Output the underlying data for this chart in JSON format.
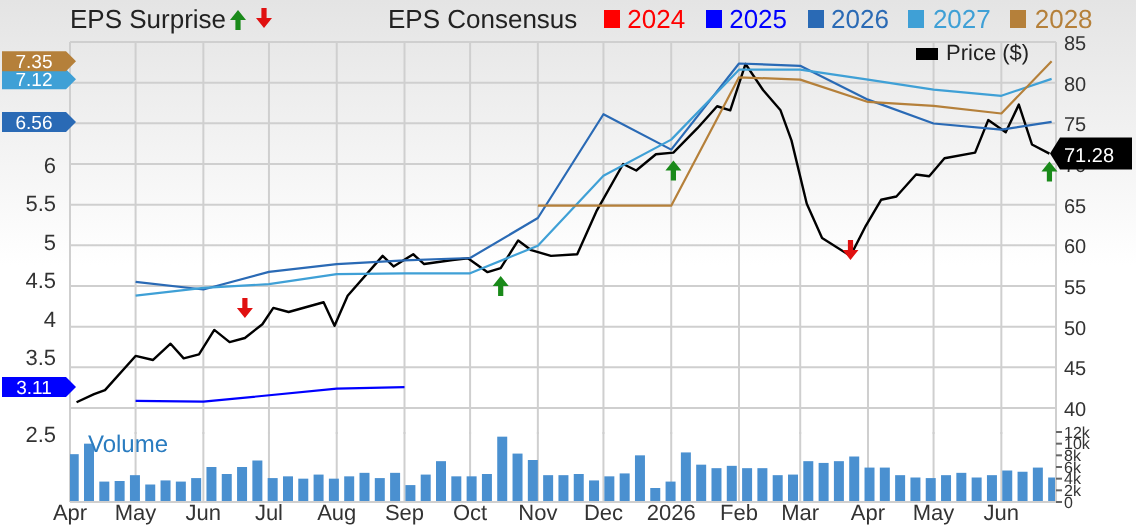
{
  "chart_data": [
    {
      "type": "line",
      "legend_title": "EPS Consensus",
      "legend": "top",
      "grid": true,
      "tick_labels": "y",
      "annotations": [
        "EPS Surprise"
      ],
      "xlim": [
        "2025-04-01",
        "2026-06-26"
      ],
      "ylim": [
        2.5,
        7.6
      ],
      "yticks": [
        2.5,
        3.11,
        3.5,
        4,
        4.5,
        5,
        5.5,
        6,
        6.56,
        7.12,
        7.35
      ],
      "y2lim": [
        36.8,
        85
      ],
      "y2ticks": [
        40,
        45,
        50,
        55,
        60,
        65,
        70,
        71.28,
        75,
        80,
        85
      ],
      "series": [
        {
          "name": "Price ($)",
          "axis": "y2",
          "color": "#000000",
          "x": [
            "2025-04-04",
            "2025-04-12",
            "2025-04-17",
            "2025-05-01",
            "2025-05-09",
            "2025-05-17",
            "2025-05-23",
            "2025-05-30",
            "2025-06-06",
            "2025-06-13",
            "2025-06-20",
            "2025-06-28",
            "2025-07-03",
            "2025-07-10",
            "2025-07-26",
            "2025-07-31",
            "2025-08-06",
            "2025-08-22",
            "2025-08-27",
            "2025-09-05",
            "2025-09-10",
            "2025-09-23",
            "2025-09-30",
            "2025-10-09",
            "2025-10-15",
            "2025-10-23",
            "2025-10-29",
            "2025-11-07",
            "2025-11-19",
            "2025-11-28",
            "2025-12-10",
            "2025-12-16",
            "2025-12-25",
            "2026-01-02",
            "2026-01-13",
            "2026-01-22",
            "2026-01-28",
            "2026-02-04",
            "2026-02-12",
            "2026-02-20",
            "2026-02-25",
            "2026-03-04",
            "2026-03-11",
            "2026-03-24",
            "2026-03-31",
            "2026-04-07",
            "2026-04-14",
            "2026-04-23",
            "2026-04-29",
            "2026-05-06",
            "2026-05-20",
            "2026-05-26",
            "2026-06-03",
            "2026-06-09",
            "2026-06-15",
            "2026-06-23"
          ],
          "values": [
            40.7,
            41.7,
            42.2,
            46.4,
            45.9,
            47.9,
            46.1,
            46.6,
            49.6,
            48.1,
            48.6,
            50.3,
            52.3,
            51.8,
            53.0,
            50.1,
            53.8,
            58.7,
            57.4,
            58.9,
            57.7,
            58.2,
            58.4,
            56.7,
            57.2,
            60.6,
            59.4,
            58.7,
            58.9,
            64.3,
            70.0,
            69.2,
            71.2,
            71.4,
            74.4,
            77.1,
            76.6,
            82.3,
            79.1,
            76.6,
            72.9,
            65.1,
            60.9,
            58.7,
            62.4,
            65.6,
            66.0,
            68.7,
            68.5,
            70.7,
            71.4,
            75.4,
            73.9,
            77.3,
            72.4,
            71.28
          ]
        },
        {
          "name": "2024",
          "color": "#ff0000"
        },
        {
          "name": "2025",
          "color": "#0000ff",
          "x": [
            "2025-05-01",
            "2025-06-01",
            "2025-08-01",
            "2025-09-01"
          ],
          "values": [
            2.93,
            2.92,
            3.09,
            3.11
          ]
        },
        {
          "name": "2026",
          "color": "#2a6ab5",
          "x": [
            "2025-05-01",
            "2025-06-01",
            "2025-07-01",
            "2025-08-01",
            "2025-09-01",
            "2025-10-01",
            "2025-11-01",
            "2025-12-01",
            "2026-01-01",
            "2026-02-01",
            "2026-03-01",
            "2026-04-01",
            "2026-05-01",
            "2026-06-01",
            "2026-06-24"
          ],
          "values": [
            4.48,
            4.38,
            4.61,
            4.71,
            4.76,
            4.79,
            5.31,
            6.66,
            6.2,
            7.32,
            7.29,
            6.85,
            6.54,
            6.46,
            6.56
          ]
        },
        {
          "name": "2027",
          "color": "#3fa0d6",
          "x": [
            "2025-05-01",
            "2025-06-01",
            "2025-07-01",
            "2025-08-01",
            "2025-09-01",
            "2025-10-01",
            "2025-11-01",
            "2025-12-01",
            "2026-01-01",
            "2026-02-01",
            "2026-03-01",
            "2026-04-01",
            "2026-05-01",
            "2026-06-01",
            "2026-06-24"
          ],
          "values": [
            4.3,
            4.4,
            4.45,
            4.58,
            4.59,
            4.59,
            4.95,
            5.86,
            6.33,
            7.24,
            7.24,
            7.11,
            6.98,
            6.9,
            7.12
          ]
        },
        {
          "name": "2028",
          "color": "#b5803a",
          "x": [
            "2025-11-01",
            "2025-12-01",
            "2026-01-01",
            "2026-02-01",
            "2026-03-01",
            "2026-04-01",
            "2026-05-01",
            "2026-06-01",
            "2026-06-24"
          ],
          "values": [
            5.47,
            5.47,
            5.47,
            7.14,
            7.11,
            6.82,
            6.77,
            6.67,
            7.35
          ]
        }
      ]
    },
    {
      "type": "bar",
      "ylabel": "Volume",
      "grid": "x",
      "xlim": [
        "2025-04-01",
        "2026-06-26"
      ],
      "xticks": [
        {
          "value": "2025-04-01",
          "label": "Apr"
        },
        {
          "value": "2025-05-01",
          "label": "May"
        },
        {
          "value": "2025-06-01",
          "label": "Jun"
        },
        {
          "value": "2025-07-01",
          "label": "Jul"
        },
        {
          "value": "2025-08-01",
          "label": "Aug"
        },
        {
          "value": "2025-09-01",
          "label": "Sep"
        },
        {
          "value": "2025-10-01",
          "label": "Oct"
        },
        {
          "value": "2025-11-01",
          "label": "Nov"
        },
        {
          "value": "2025-12-01",
          "label": "Dec"
        },
        {
          "value": "2026-01-01",
          "label": "2026"
        },
        {
          "value": "2026-02-01",
          "label": "Feb"
        },
        {
          "value": "2026-03-01",
          "label": "Mar"
        },
        {
          "value": "2026-04-01",
          "label": "Apr"
        },
        {
          "value": "2026-05-01",
          "label": "May"
        },
        {
          "value": "2026-06-01",
          "label": "Jun"
        }
      ],
      "ylim": [
        0,
        12000
      ],
      "yticks": [
        {
          "value": 0,
          "label": "0"
        },
        {
          "value": 2000,
          "label": "2k"
        },
        {
          "value": 4000,
          "label": "4k"
        },
        {
          "value": 6000,
          "label": "6k"
        },
        {
          "value": 8000,
          "label": "8k"
        },
        {
          "value": 10000,
          "label": "10k"
        },
        {
          "value": 12000,
          "label": "12k"
        }
      ],
      "series": [
        {
          "color": "#4a90d0",
          "x": [
            "2025-04-03",
            "2025-04-10",
            "2025-04-17",
            "2025-04-24",
            "2025-05-01",
            "2025-05-08",
            "2025-05-15",
            "2025-05-22",
            "2025-05-29",
            "2025-06-05",
            "2025-06-12",
            "2025-06-19",
            "2025-06-26",
            "2025-07-03",
            "2025-07-10",
            "2025-07-17",
            "2025-07-24",
            "2025-07-31",
            "2025-08-07",
            "2025-08-14",
            "2025-08-21",
            "2025-08-28",
            "2025-09-04",
            "2025-09-11",
            "2025-09-18",
            "2025-09-25",
            "2025-10-02",
            "2025-10-09",
            "2025-10-16",
            "2025-10-23",
            "2025-10-30",
            "2025-11-06",
            "2025-11-13",
            "2025-11-20",
            "2025-11-27",
            "2025-12-04",
            "2025-12-11",
            "2025-12-18",
            "2025-12-25",
            "2026-01-01",
            "2026-01-08",
            "2026-01-15",
            "2026-01-22",
            "2026-01-29",
            "2026-02-05",
            "2026-02-12",
            "2026-02-19",
            "2026-02-26",
            "2026-03-05",
            "2026-03-12",
            "2026-03-19",
            "2026-03-26",
            "2026-04-02",
            "2026-04-09",
            "2026-04-16",
            "2026-04-23",
            "2026-04-30",
            "2026-05-07",
            "2026-05-14",
            "2026-05-21",
            "2026-05-28",
            "2026-06-04",
            "2026-06-11",
            "2026-06-18",
            "2026-06-25"
          ],
          "values": [
            8200,
            10000,
            3500,
            3600,
            4600,
            3000,
            3700,
            3500,
            4100,
            6000,
            4800,
            6000,
            7100,
            4100,
            4400,
            4000,
            4700,
            4000,
            4400,
            5000,
            4100,
            5000,
            2900,
            4700,
            7000,
            4400,
            4400,
            4800,
            11200,
            8300,
            7200,
            4600,
            4600,
            4800,
            3700,
            4400,
            4900,
            8000,
            2400,
            3500,
            8500,
            6400,
            5800,
            6200,
            5800,
            5800,
            4600,
            4700,
            7000,
            6700,
            7000,
            7800,
            5900,
            5900,
            4600,
            4200,
            4100,
            4600,
            5000,
            4200,
            4600,
            5400,
            5200,
            5900,
            4200
          ]
        }
      ]
    }
  ]
}
